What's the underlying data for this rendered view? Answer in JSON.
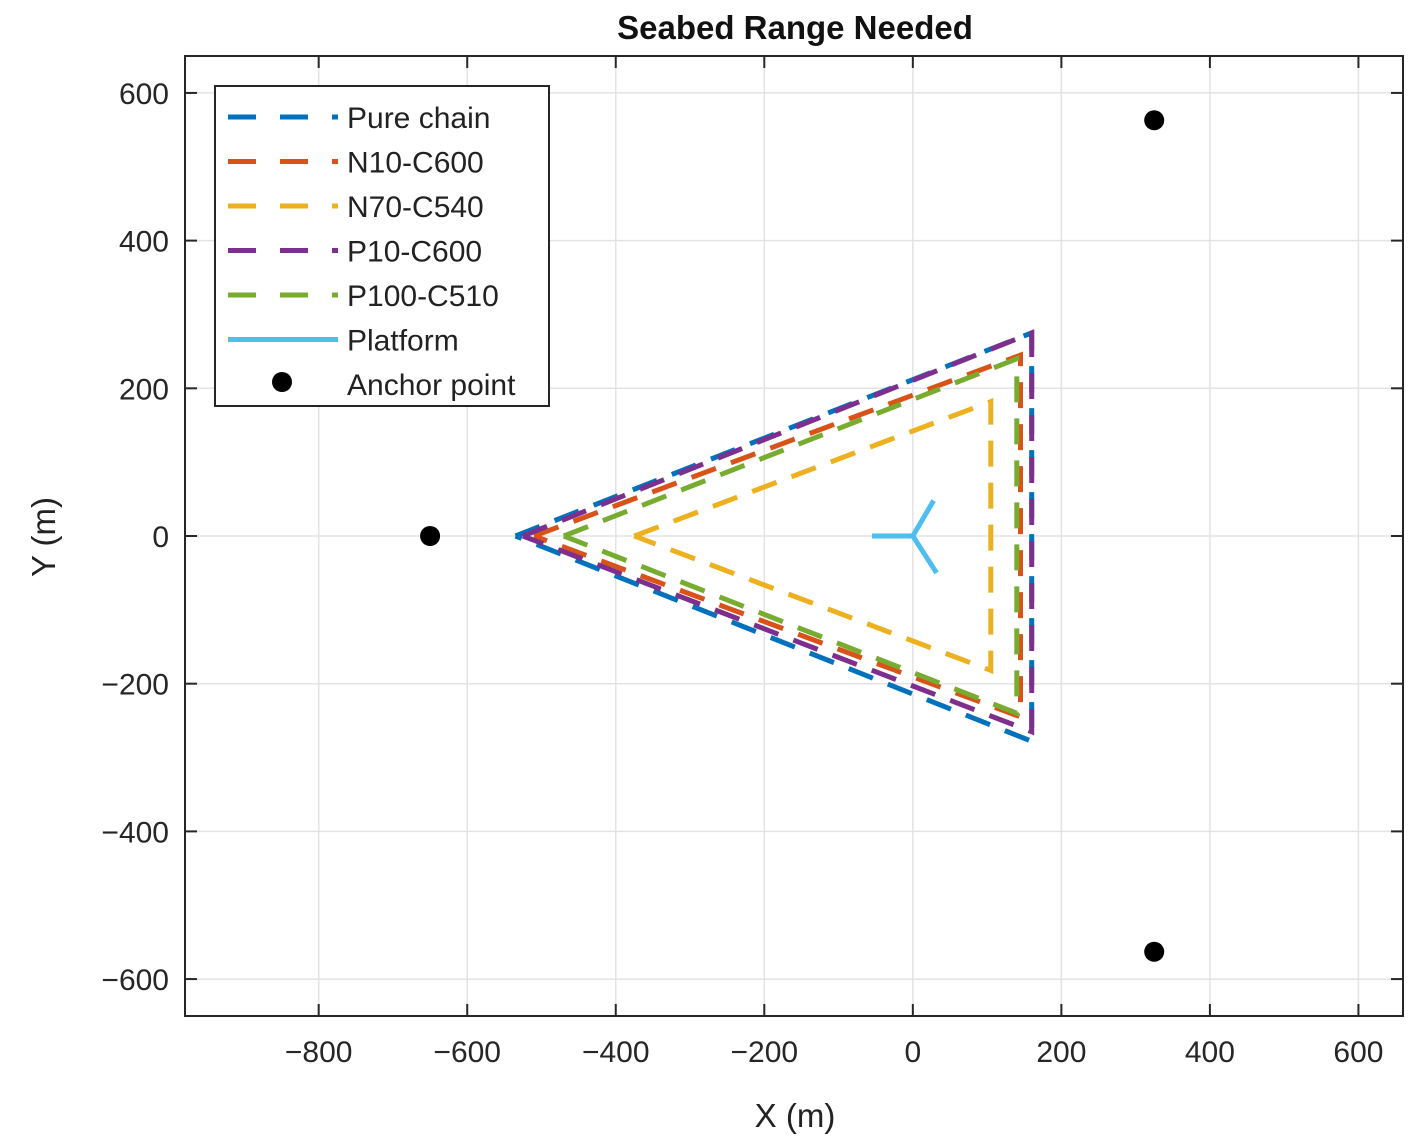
{
  "chart_data": {
    "type": "line",
    "title": "Seabed Range Needed",
    "xlabel": "X (m)",
    "ylabel": "Y (m)",
    "xlim": [
      -980,
      660
    ],
    "ylim": [
      -650,
      650
    ],
    "x_ticks": [
      -800,
      -600,
      -400,
      -200,
      0,
      200,
      400,
      600
    ],
    "y_ticks": [
      600,
      400,
      200,
      0,
      -200,
      -400,
      -600
    ],
    "x_tick_labels": [
      "−800",
      "−600",
      "−400",
      "−200",
      "0",
      "200",
      "400",
      "600"
    ],
    "y_tick_labels": [
      "600",
      "400",
      "200",
      "0",
      "−200",
      "−400",
      "−600"
    ],
    "grid": true,
    "legend_position": "top-left",
    "series": [
      {
        "name": "Pure chain",
        "style": "dashed",
        "color": "#0072BD",
        "x": [
          -535,
          160,
          160,
          -535
        ],
        "y": [
          0,
          275,
          -278,
          0
        ]
      },
      {
        "name": "N10-C600",
        "style": "dashed",
        "color": "#D95319",
        "x": [
          -510,
          145,
          145,
          -510
        ],
        "y": [
          0,
          245,
          -245,
          0
        ]
      },
      {
        "name": "N70-C540",
        "style": "dashed",
        "color": "#EDB120",
        "x": [
          -375,
          105,
          105,
          -375
        ],
        "y": [
          0,
          182,
          -182,
          0
        ]
      },
      {
        "name": "P10-C600",
        "style": "dashed",
        "color": "#7E2F8E",
        "x": [
          -525,
          160,
          160,
          -525
        ],
        "y": [
          0,
          275,
          -265,
          0
        ]
      },
      {
        "name": "P100-C510",
        "style": "dashed",
        "color": "#77AC30",
        "x": [
          -470,
          140,
          140,
          -470
        ],
        "y": [
          0,
          240,
          -240,
          0
        ]
      },
      {
        "name": "Platform",
        "style": "solid",
        "color": "#4DBEEE",
        "segments": [
          {
            "x": [
              0,
              -55
            ],
            "y": [
              0,
              0
            ]
          },
          {
            "x": [
              0,
              28
            ],
            "y": [
              0,
              48
            ]
          },
          {
            "x": [
              0,
              32
            ],
            "y": [
              0,
              -50
            ]
          }
        ]
      }
    ],
    "points": {
      "name": "Anchor point",
      "color": "#000000",
      "x": [
        325,
        -650,
        325
      ],
      "y": [
        563,
        0,
        -563
      ]
    }
  }
}
